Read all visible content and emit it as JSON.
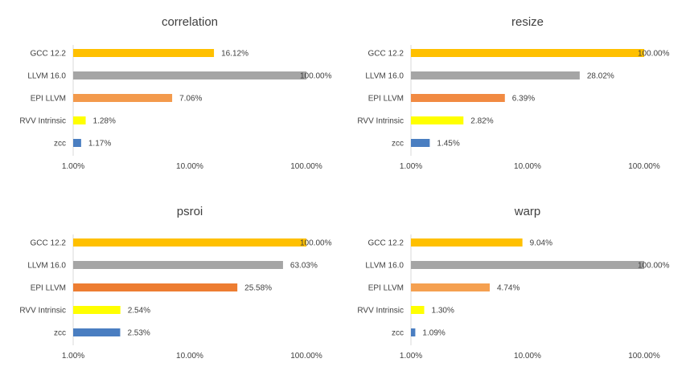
{
  "colors": {
    "gcc": "#FFC000",
    "llvm": "#A5A5A5",
    "epi": "#ED8B3E",
    "epi_dark": "#ED7D31",
    "rvv": "#FFFF00",
    "zcc": "#4A7EC1",
    "text": "#404040"
  },
  "chart_data": [
    {
      "type": "bar",
      "orientation": "horizontal",
      "title": "correlation",
      "scale": "log",
      "xlim": [
        1,
        100
      ],
      "xticks": [
        "1.00%",
        "10.00%",
        "100.00%"
      ],
      "categories": [
        "GCC 12.2",
        "LLVM 16.0",
        "EPI LLVM",
        "RVV Intrinsic",
        "zcc"
      ],
      "values": [
        16.12,
        100.0,
        7.06,
        1.28,
        1.17
      ],
      "data_labels": [
        "16.12%",
        "100.00%",
        "7.06%",
        "1.28%",
        "1.17%"
      ],
      "bar_colors": [
        "#FFC000",
        "#A5A5A5",
        "#F39A4C",
        "#FFFF00",
        "#4A7EC1"
      ]
    },
    {
      "type": "bar",
      "orientation": "horizontal",
      "title": "resize",
      "scale": "log",
      "xlim": [
        1,
        100
      ],
      "xticks": [
        "1.00%",
        "10.00%",
        "100.00%"
      ],
      "categories": [
        "GCC 12.2",
        "LLVM 16.0",
        "EPI LLVM",
        "RVV Intrinsic",
        "zcc"
      ],
      "values": [
        100.0,
        28.02,
        6.39,
        2.82,
        1.45
      ],
      "data_labels": [
        "100.00%",
        "28.02%",
        "6.39%",
        "2.82%",
        "1.45%"
      ],
      "bar_colors": [
        "#FFC000",
        "#A5A5A5",
        "#F18A42",
        "#FFFF00",
        "#4A7EC1"
      ]
    },
    {
      "type": "bar",
      "orientation": "horizontal",
      "title": "psroi",
      "scale": "log",
      "xlim": [
        1,
        100
      ],
      "xticks": [
        "1.00%",
        "10.00%",
        "100.00%"
      ],
      "categories": [
        "GCC 12.2",
        "LLVM 16.0",
        "EPI LLVM",
        "RVV Intrinsic",
        "zcc"
      ],
      "values": [
        100.0,
        63.03,
        25.58,
        2.54,
        2.53
      ],
      "data_labels": [
        "100.00%",
        "63.03%",
        "25.58%",
        "2.54%",
        "2.53%"
      ],
      "bar_colors": [
        "#FFC000",
        "#A5A5A5",
        "#ED7D31",
        "#FFFF00",
        "#4A7EC1"
      ]
    },
    {
      "type": "bar",
      "orientation": "horizontal",
      "title": "warp",
      "scale": "log",
      "xlim": [
        1,
        100
      ],
      "xticks": [
        "1.00%",
        "10.00%",
        "100.00%"
      ],
      "categories": [
        "GCC 12.2",
        "LLVM 16.0",
        "EPI LLVM",
        "RVV Intrinsic",
        "zcc"
      ],
      "values": [
        9.04,
        100.0,
        4.74,
        1.3,
        1.09
      ],
      "data_labels": [
        "9.04%",
        "100.00%",
        "4.74%",
        "1.30%",
        "1.09%"
      ],
      "bar_colors": [
        "#FFC000",
        "#A5A5A5",
        "#F5A050",
        "#FFFF00",
        "#4A7EC1"
      ]
    }
  ]
}
